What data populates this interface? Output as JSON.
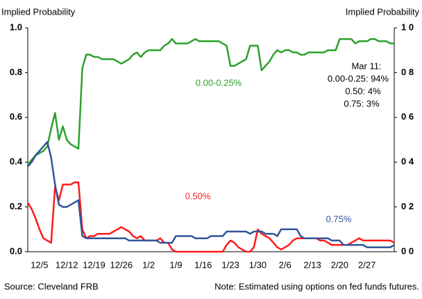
{
  "chart_data": {
    "type": "line",
    "y_label": "Implied Probability",
    "y2_label": "Implied Probability",
    "categories": [
      null,
      null,
      null,
      "12/5",
      null,
      null,
      null,
      null,
      null,
      null,
      "12/12",
      null,
      null,
      null,
      null,
      null,
      null,
      "12/19",
      null,
      null,
      null,
      null,
      null,
      null,
      "12/26",
      null,
      null,
      null,
      null,
      null,
      null,
      "1/2",
      null,
      null,
      null,
      null,
      null,
      null,
      "1/9",
      null,
      null,
      null,
      null,
      null,
      null,
      "1/16",
      null,
      null,
      null,
      null,
      null,
      null,
      "1/23",
      null,
      null,
      null,
      null,
      null,
      null,
      "1/30",
      null,
      null,
      null,
      null,
      null,
      null,
      "2/6",
      null,
      null,
      null,
      null,
      null,
      null,
      "2/13",
      null,
      null,
      null,
      null,
      null,
      null,
      "2/20",
      null,
      null,
      null,
      null,
      null,
      null,
      "2/27",
      null,
      null,
      null,
      null,
      null,
      null,
      null
    ],
    "series": [
      {
        "name": "0.00-0.25%",
        "color": "#2ca02c",
        "values": [
          0.39,
          0.41,
          0.43,
          0.44,
          0.45,
          0.47,
          0.55,
          0.62,
          0.5,
          0.56,
          0.5,
          0.48,
          0.47,
          0.46,
          0.82,
          0.88,
          0.88,
          0.87,
          0.87,
          0.86,
          0.86,
          0.86,
          0.86,
          0.85,
          0.84,
          0.85,
          0.86,
          0.88,
          0.89,
          0.87,
          0.89,
          0.9,
          0.9,
          0.9,
          0.9,
          0.92,
          0.93,
          0.95,
          0.93,
          0.93,
          0.93,
          0.93,
          0.94,
          0.95,
          0.94,
          0.94,
          0.94,
          0.94,
          0.94,
          0.94,
          0.93,
          0.92,
          0.83,
          0.83,
          0.84,
          0.85,
          0.86,
          0.92,
          0.92,
          0.92,
          0.81,
          0.83,
          0.85,
          0.88,
          0.9,
          0.89,
          0.9,
          0.9,
          0.89,
          0.89,
          0.88,
          0.88,
          0.89,
          0.89,
          0.89,
          0.89,
          0.89,
          0.9,
          0.9,
          0.9,
          0.95,
          0.95,
          0.95,
          0.95,
          0.93,
          0.94,
          0.94,
          0.94,
          0.95,
          0.95,
          0.94,
          0.94,
          0.94,
          0.93,
          0.93
        ]
      },
      {
        "name": "0.50%",
        "color": "#ff1a1a",
        "values": [
          0.22,
          0.19,
          0.15,
          0.1,
          0.06,
          0.05,
          0.04,
          0.29,
          0.23,
          0.3,
          0.3,
          0.3,
          0.31,
          0.31,
          0.1,
          0.06,
          0.07,
          0.07,
          0.08,
          0.08,
          0.08,
          0.08,
          0.09,
          0.1,
          0.11,
          0.1,
          0.09,
          0.07,
          0.06,
          0.07,
          0.05,
          0.05,
          0.05,
          0.05,
          0.06,
          0.04,
          0.04,
          0.01,
          0,
          0,
          0,
          0,
          0,
          0,
          0,
          0,
          0,
          0,
          0,
          0,
          0,
          0.03,
          0.05,
          0.04,
          0.02,
          0.01,
          0,
          0,
          0.02,
          0.1,
          0.08,
          0.07,
          0.06,
          0.04,
          0.02,
          0.01,
          0.02,
          0.03,
          0.05,
          0.06,
          0.06,
          0.06,
          0.06,
          0.06,
          0.06,
          0.05,
          0.05,
          0.04,
          0.03,
          0.03,
          0.03,
          0.03,
          0.03,
          0.04,
          0.05,
          0.06,
          0.05,
          0.05,
          0.05,
          0.05,
          0.05,
          0.05,
          0.05,
          0.05,
          0.04
        ]
      },
      {
        "name": "0.75%",
        "color": "#2f5597",
        "values": [
          0.38,
          0.4,
          0.43,
          0.45,
          0.47,
          0.49,
          0.42,
          0.3,
          0.21,
          0.2,
          0.2,
          0.21,
          0.22,
          0.23,
          0.07,
          0.06,
          0.06,
          0.06,
          0.06,
          0.06,
          0.06,
          0.06,
          0.06,
          0.06,
          0.06,
          0.06,
          0.05,
          0.05,
          0.05,
          0.05,
          0.05,
          0.05,
          0.05,
          0.05,
          0.04,
          0.04,
          0.04,
          0.04,
          0.07,
          0.07,
          0.07,
          0.07,
          0.07,
          0.06,
          0.06,
          0.06,
          0.06,
          0.07,
          0.07,
          0.07,
          0.07,
          0.09,
          0.09,
          0.09,
          0.09,
          0.09,
          0.09,
          0.08,
          0.09,
          0.09,
          0.09,
          0.08,
          0.08,
          0.08,
          0.07,
          0.1,
          0.1,
          0.1,
          0.1,
          0.1,
          0.07,
          0.06,
          0.06,
          0.06,
          0.06,
          0.06,
          0.06,
          0.06,
          0.05,
          0.05,
          0.05,
          0.03,
          0.03,
          0.03,
          0.03,
          0.03,
          0.03,
          0.02,
          0.02,
          0.02,
          0.02,
          0.02,
          0.02,
          0.02,
          0.03
        ]
      }
    ],
    "ylim": [
      0,
      1
    ],
    "yticks": [
      {
        "value": 0,
        "label": "0.0"
      },
      0.2,
      0.4,
      0.6,
      0.8,
      {
        "value": 1,
        "label": "1.0"
      }
    ],
    "y2lim": [
      0,
      1
    ],
    "y2ticks": [
      {
        "value": 0,
        "label": "0 0"
      },
      {
        "value": 0.2,
        "label": "0 2"
      },
      {
        "value": 0.4,
        "label": "0 4"
      },
      {
        "value": 0.6,
        "label": "0 6"
      },
      {
        "value": 0.8,
        "label": "0 8"
      },
      {
        "value": 1,
        "label": "1 0"
      }
    ],
    "annotations": [
      "Mar 11:",
      "0.00-0.25: 94%",
      "0.50: 4%",
      "0.75: 3%"
    ],
    "source": "Source: Cleveland FRB",
    "note": "Note: Estimated using options on fed funds futures."
  }
}
